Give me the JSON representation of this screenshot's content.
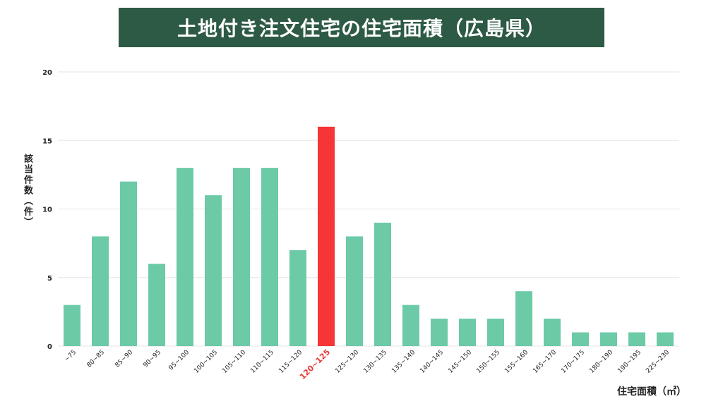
{
  "title": "土地付き注文住宅の住宅面積（広島県）",
  "colors": {
    "title_bg": "#2d5a45",
    "bar": "#6ccaa7",
    "highlight": "#f53536",
    "highlight_label": "#e53935",
    "grid": "#e6e6e6"
  },
  "chart_data": {
    "type": "bar",
    "title": "土地付き注文住宅の住宅面積（広島県）",
    "xlabel": "住宅面積（㎡）",
    "ylabel": "該当件数（件）",
    "ylim": [
      0,
      20
    ],
    "yticks": [
      0,
      5,
      10,
      15,
      20
    ],
    "grid": true,
    "highlight_category": "120~125",
    "categories": [
      "~75",
      "80~85",
      "85~90",
      "90~95",
      "95~100",
      "100~105",
      "105~110",
      "110~115",
      "115~120",
      "120~125",
      "125~130",
      "130~135",
      "135~140",
      "140~145",
      "145~150",
      "150~155",
      "155~160",
      "165~170",
      "170~175",
      "180~190",
      "190~195",
      "225~230"
    ],
    "values": [
      3,
      8,
      12,
      6,
      13,
      11,
      13,
      13,
      7,
      16,
      8,
      9,
      3,
      2,
      2,
      2,
      4,
      2,
      1,
      1,
      1,
      1
    ]
  }
}
